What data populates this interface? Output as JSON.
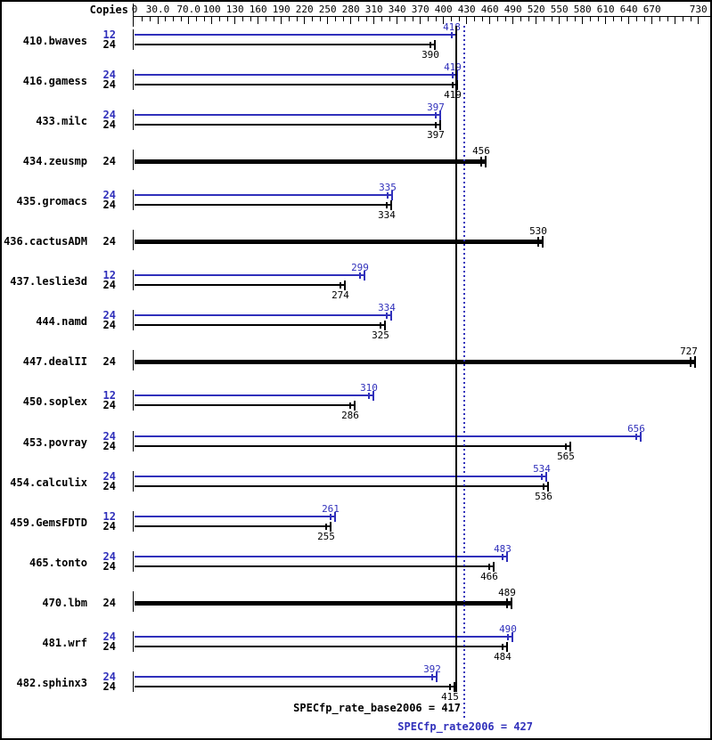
{
  "chart_data": {
    "type": "bar",
    "orientation": "horizontal",
    "copies_header": "Copies",
    "series_colors": {
      "peak": "#3030BB",
      "base": "#000000"
    },
    "axis": {
      "min": 0,
      "max": 737,
      "minor_tick_step": 10,
      "tick_labels": [
        {
          "v": 0,
          "t": "0"
        },
        {
          "v": 30,
          "t": "30.0"
        },
        {
          "v": 70,
          "t": "70.0"
        },
        {
          "v": 100,
          "t": "100"
        },
        {
          "v": 130,
          "t": "130"
        },
        {
          "v": 160,
          "t": "160"
        },
        {
          "v": 190,
          "t": "190"
        },
        {
          "v": 220,
          "t": "220"
        },
        {
          "v": 250,
          "t": "250"
        },
        {
          "v": 280,
          "t": "280"
        },
        {
          "v": 310,
          "t": "310"
        },
        {
          "v": 340,
          "t": "340"
        },
        {
          "v": 370,
          "t": "370"
        },
        {
          "v": 400,
          "t": "400"
        },
        {
          "v": 430,
          "t": "430"
        },
        {
          "v": 460,
          "t": "460"
        },
        {
          "v": 490,
          "t": "490"
        },
        {
          "v": 520,
          "t": "520"
        },
        {
          "v": 550,
          "t": "550"
        },
        {
          "v": 580,
          "t": "580"
        },
        {
          "v": 610,
          "t": "610"
        },
        {
          "v": 640,
          "t": "640"
        },
        {
          "v": 670,
          "t": "670"
        },
        {
          "v": 730,
          "t": "730"
        }
      ]
    },
    "reference_lines": [
      {
        "name": "base",
        "value": 417,
        "label": "SPECfp_rate_base2006 = 417",
        "style": "solid",
        "color": "#000000"
      },
      {
        "name": "peak",
        "value": 427,
        "label": "SPECfp_rate2006 = 427",
        "style": "dotted",
        "color": "#3030BB"
      }
    ],
    "benchmarks": [
      {
        "name": "410.bwaves",
        "rows": [
          {
            "series": "peak",
            "copies": "12",
            "value": 418
          },
          {
            "series": "base",
            "copies": "24",
            "value": 390
          }
        ]
      },
      {
        "name": "416.gamess",
        "rows": [
          {
            "series": "peak",
            "copies": "24",
            "value": 419
          },
          {
            "series": "base",
            "copies": "24",
            "value": 419
          }
        ]
      },
      {
        "name": "433.milc",
        "rows": [
          {
            "series": "peak",
            "copies": "24",
            "value": 397
          },
          {
            "series": "base",
            "copies": "24",
            "value": 397
          }
        ]
      },
      {
        "name": "434.zeusmp",
        "rows": [
          {
            "series": "base",
            "copies": "24",
            "value": 456,
            "single": true
          }
        ]
      },
      {
        "name": "435.gromacs",
        "rows": [
          {
            "series": "peak",
            "copies": "24",
            "value": 335
          },
          {
            "series": "base",
            "copies": "24",
            "value": 334
          }
        ]
      },
      {
        "name": "436.cactusADM",
        "rows": [
          {
            "series": "base",
            "copies": "24",
            "value": 530,
            "single": true
          }
        ]
      },
      {
        "name": "437.leslie3d",
        "rows": [
          {
            "series": "peak",
            "copies": "12",
            "value": 299
          },
          {
            "series": "base",
            "copies": "24",
            "value": 274
          }
        ]
      },
      {
        "name": "444.namd",
        "rows": [
          {
            "series": "peak",
            "copies": "24",
            "value": 334
          },
          {
            "series": "base",
            "copies": "24",
            "value": 325
          }
        ]
      },
      {
        "name": "447.dealII",
        "rows": [
          {
            "series": "base",
            "copies": "24",
            "value": 727,
            "single": true
          }
        ]
      },
      {
        "name": "450.soplex",
        "rows": [
          {
            "series": "peak",
            "copies": "12",
            "value": 310
          },
          {
            "series": "base",
            "copies": "24",
            "value": 286
          }
        ]
      },
      {
        "name": "453.povray",
        "rows": [
          {
            "series": "peak",
            "copies": "24",
            "value": 656
          },
          {
            "series": "base",
            "copies": "24",
            "value": 565
          }
        ]
      },
      {
        "name": "454.calculix",
        "rows": [
          {
            "series": "peak",
            "copies": "24",
            "value": 534
          },
          {
            "series": "base",
            "copies": "24",
            "value": 536
          }
        ]
      },
      {
        "name": "459.GemsFDTD",
        "rows": [
          {
            "series": "peak",
            "copies": "12",
            "value": 261
          },
          {
            "series": "base",
            "copies": "24",
            "value": 255
          }
        ]
      },
      {
        "name": "465.tonto",
        "rows": [
          {
            "series": "peak",
            "copies": "24",
            "value": 483
          },
          {
            "series": "base",
            "copies": "24",
            "value": 466
          }
        ]
      },
      {
        "name": "470.lbm",
        "rows": [
          {
            "series": "base",
            "copies": "24",
            "value": 489,
            "single": true
          }
        ]
      },
      {
        "name": "481.wrf",
        "rows": [
          {
            "series": "peak",
            "copies": "24",
            "value": 490
          },
          {
            "series": "base",
            "copies": "24",
            "value": 484
          }
        ]
      },
      {
        "name": "482.sphinx3",
        "rows": [
          {
            "series": "peak",
            "copies": "24",
            "value": 392
          },
          {
            "series": "base",
            "copies": "24",
            "value": 415
          }
        ]
      }
    ]
  }
}
